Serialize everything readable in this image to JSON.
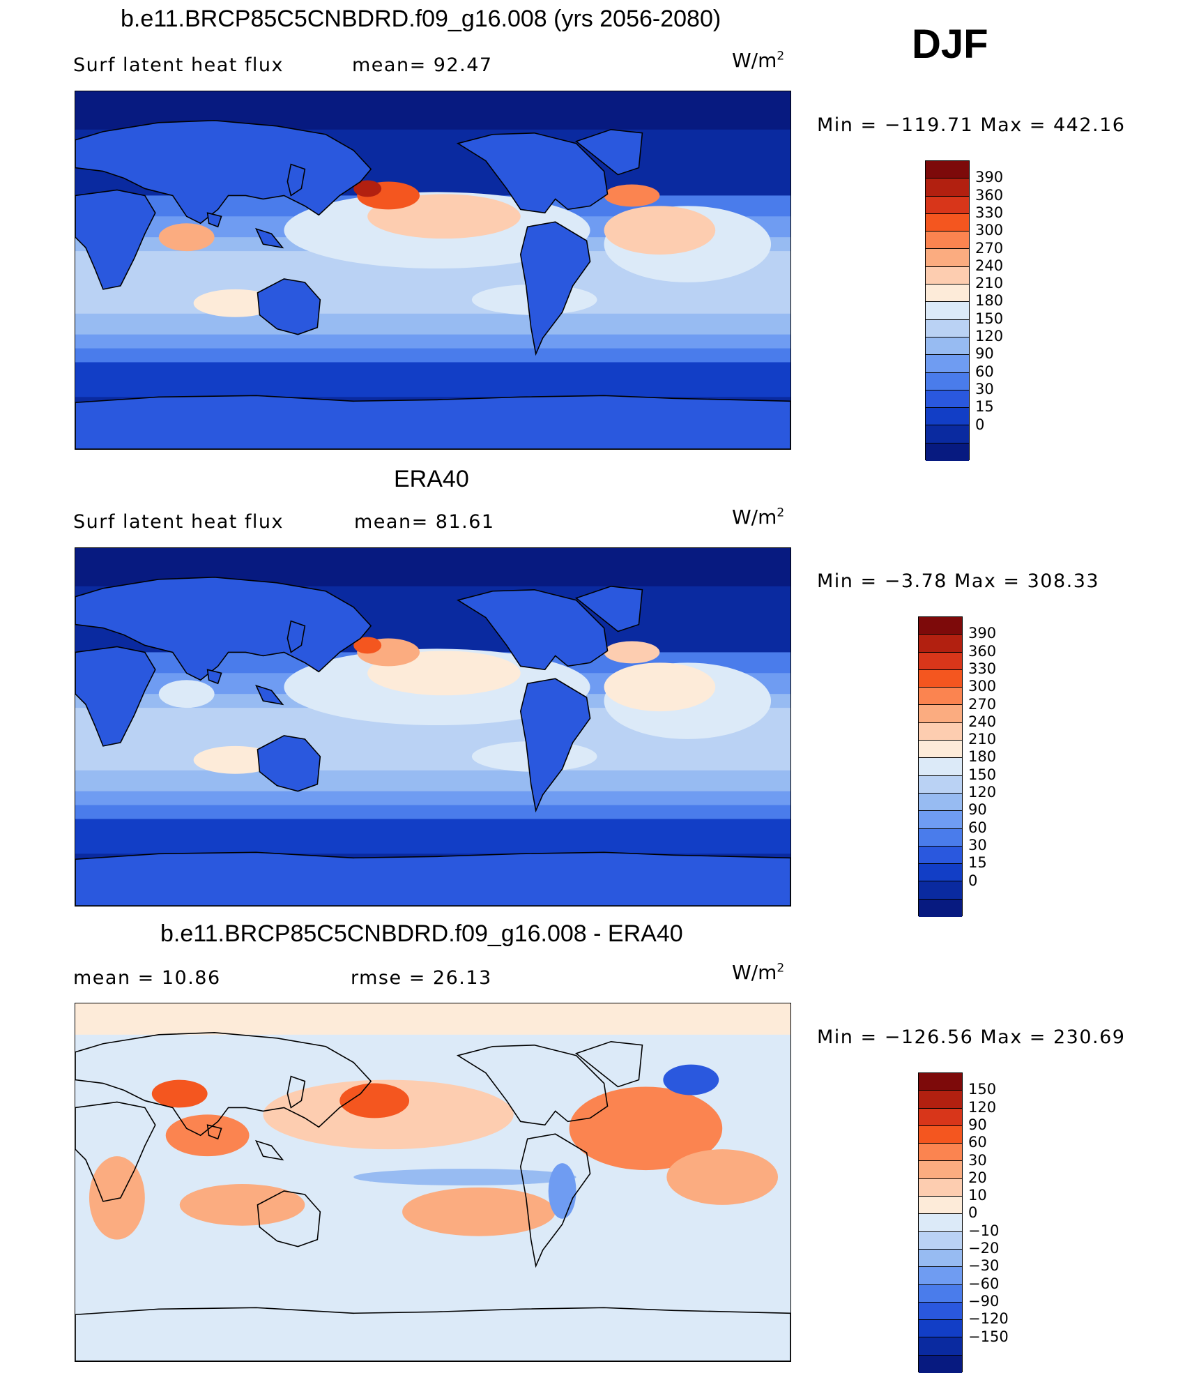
{
  "season": "DJF",
  "panels": [
    {
      "title": "b.e11.BRCP85C5CNBDRD.f09_g16.008 (yrs 2056-2080)",
      "left_label": "Surf  latent  heat  flux",
      "mid_label": "mean=  92.47",
      "units_base": "W/m",
      "units_exp": "2",
      "minmax": "Min  =  −119.71  Max  =  442.16",
      "field": "model",
      "colorbar": {
        "colors": [
          "#7d0a0a",
          "#b22010",
          "#d8361a",
          "#f4561f",
          "#fb8450",
          "#fbac80",
          "#fdcdb0",
          "#fdebd9",
          "#dceaf8",
          "#bad2f4",
          "#97bbf2",
          "#6f9cf2",
          "#4a7ceb",
          "#2a58de",
          "#123ec6",
          "#0a2aa0",
          "#071a80"
        ],
        "ticks": [
          "390",
          "360",
          "330",
          "300",
          "270",
          "240",
          "210",
          "180",
          "150",
          "120",
          "90",
          "60",
          "30",
          "15",
          "0"
        ]
      }
    },
    {
      "title": "ERA40",
      "left_label": "Surf  latent  heat  flux",
      "mid_label": "mean=  81.61",
      "units_base": "W/m",
      "units_exp": "2",
      "minmax": "Min  =   −3.78  Max  =  308.33",
      "field": "obs",
      "colorbar": {
        "colors": [
          "#7d0a0a",
          "#b22010",
          "#d8361a",
          "#f4561f",
          "#fb8450",
          "#fbac80",
          "#fdcdb0",
          "#fdebd9",
          "#dceaf8",
          "#bad2f4",
          "#97bbf2",
          "#6f9cf2",
          "#4a7ceb",
          "#2a58de",
          "#123ec6",
          "#0a2aa0",
          "#071a80"
        ],
        "ticks": [
          "390",
          "360",
          "330",
          "300",
          "270",
          "240",
          "210",
          "180",
          "150",
          "120",
          "90",
          "60",
          "30",
          "15",
          "0"
        ]
      }
    },
    {
      "title": "b.e11.BRCP85C5CNBDRD.f09_g16.008 - ERA40",
      "left_label": "mean  =    10.86",
      "mid_label": "rmse  =    26.13",
      "units_base": "W/m",
      "units_exp": "2",
      "minmax": "Min  =  −126.56  Max  =  230.69",
      "field": "diff",
      "colorbar": {
        "colors": [
          "#7d0a0a",
          "#b22010",
          "#d8361a",
          "#f4561f",
          "#fb8450",
          "#fbac80",
          "#fdcdb0",
          "#fdebd9",
          "#dceaf8",
          "#bad2f4",
          "#97bbf2",
          "#6f9cf2",
          "#4a7ceb",
          "#2a58de",
          "#123ec6",
          "#0a2aa0",
          "#071a80"
        ],
        "ticks": [
          "150",
          "120",
          "90",
          "60",
          "30",
          "20",
          "10",
          "0",
          "−10",
          "−20",
          "−30",
          "−60",
          "−90",
          "−120",
          "−150"
        ]
      }
    }
  ]
}
